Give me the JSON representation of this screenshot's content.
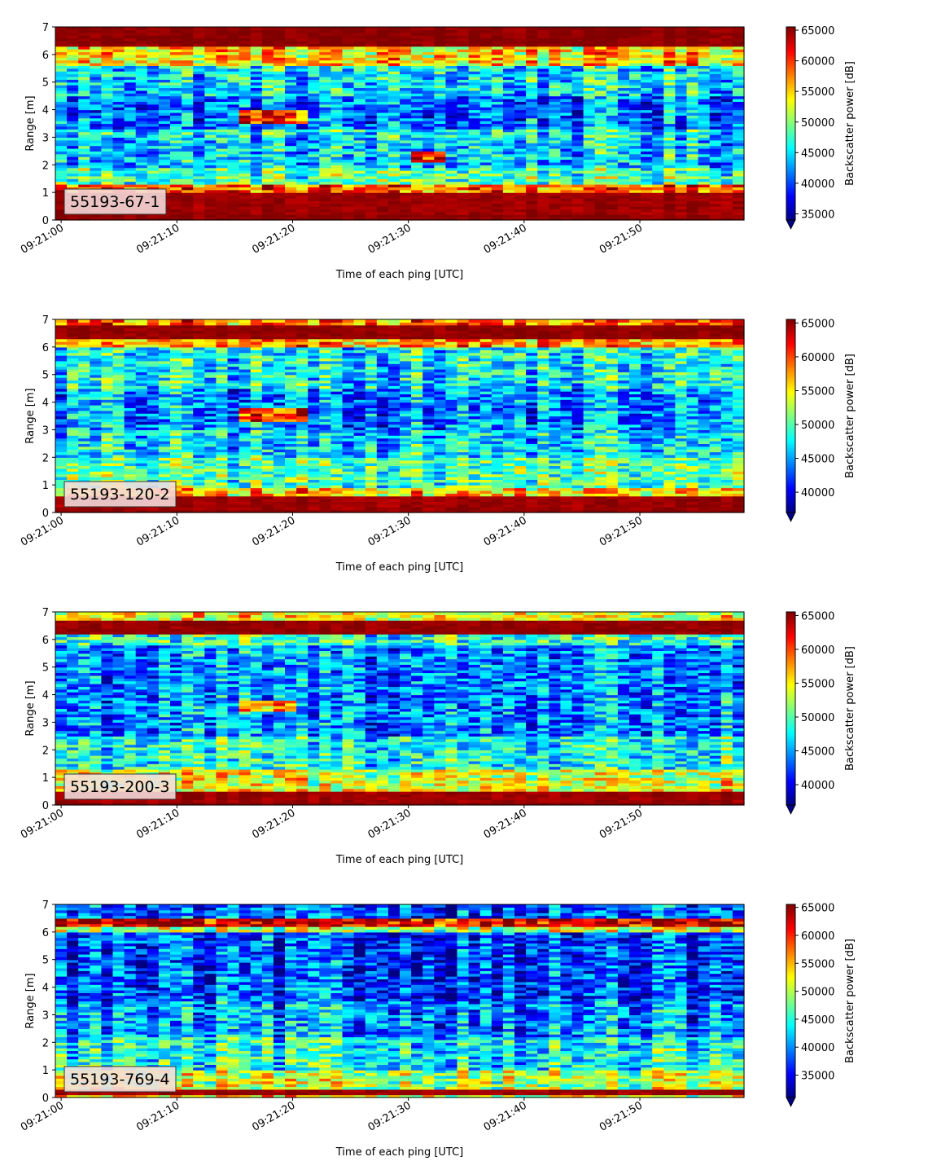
{
  "chart_data": [
    {
      "type": "heatmap",
      "label": "55193-67-1",
      "xlabel": "Time of each ping [UTC]",
      "ylabel": "Range [m]",
      "x_range": [
        "09:21:00",
        "09:21:59"
      ],
      "x_ticks": [
        "09:21:00",
        "09:21:10",
        "09:21:20",
        "09:21:30",
        "09:21:40",
        "09:21:50"
      ],
      "ylim": [
        0,
        7
      ],
      "y_ticks": [
        "0",
        "1",
        "2",
        "3",
        "4",
        "5",
        "6",
        "7"
      ],
      "colorbar": {
        "label": "Backscatter power [dB]",
        "range": [
          34000,
          65535
        ],
        "ticks": [
          "35000",
          "40000",
          "45000",
          "50000",
          "55000",
          "60000",
          "65000"
        ],
        "colormap": "jet",
        "extend": "min"
      },
      "bands": [
        {
          "y": [
            0.0,
            0.25
          ],
          "level": 0.99
        },
        {
          "y": [
            0.25,
            1.05
          ],
          "level": 0.97
        },
        {
          "y": [
            1.05,
            1.3
          ],
          "level": 0.78
        },
        {
          "y": [
            1.3,
            1.9
          ],
          "level": 0.46
        },
        {
          "y": [
            1.9,
            3.0
          ],
          "level": 0.33
        },
        {
          "y": [
            3.0,
            3.3
          ],
          "level": 0.38
        },
        {
          "y": [
            3.3,
            4.5
          ],
          "level": 0.24
        },
        {
          "y": [
            4.5,
            5.6
          ],
          "level": 0.35
        },
        {
          "y": [
            5.6,
            6.3
          ],
          "level": 0.66
        },
        {
          "y": [
            6.3,
            7.0
          ],
          "level": 0.99
        }
      ],
      "features": [
        {
          "t": [
            16.5,
            21.5
          ],
          "y": [
            3.5,
            4.0
          ],
          "level": 0.85
        },
        {
          "t": [
            31.5,
            33.5
          ],
          "y": [
            2.1,
            2.5
          ],
          "level": 0.9
        }
      ]
    },
    {
      "type": "heatmap",
      "label": "55193-120-2",
      "xlabel": "Time of each ping [UTC]",
      "ylabel": "Range [m]",
      "x_range": [
        "09:21:00",
        "09:21:59"
      ],
      "x_ticks": [
        "09:21:00",
        "09:21:10",
        "09:21:20",
        "09:21:30",
        "09:21:40",
        "09:21:50"
      ],
      "ylim": [
        0,
        7
      ],
      "y_ticks": [
        "0",
        "1",
        "2",
        "3",
        "4",
        "5",
        "6",
        "7"
      ],
      "colorbar": {
        "label": "Backscatter power [dB]",
        "range": [
          37000,
          65535
        ],
        "ticks": [
          "40000",
          "45000",
          "50000",
          "55000",
          "60000",
          "65000"
        ],
        "colormap": "jet",
        "extend": "min"
      },
      "bands": [
        {
          "y": [
            0.0,
            0.15
          ],
          "level": 0.99
        },
        {
          "y": [
            0.15,
            0.6
          ],
          "level": 0.97
        },
        {
          "y": [
            0.6,
            0.9
          ],
          "level": 0.66
        },
        {
          "y": [
            0.9,
            2.0
          ],
          "level": 0.45
        },
        {
          "y": [
            2.0,
            3.0
          ],
          "level": 0.34
        },
        {
          "y": [
            3.0,
            4.5
          ],
          "level": 0.26
        },
        {
          "y": [
            4.5,
            6.0
          ],
          "level": 0.37
        },
        {
          "y": [
            6.0,
            6.3
          ],
          "level": 0.72
        },
        {
          "y": [
            6.3,
            6.85
          ],
          "level": 0.98
        },
        {
          "y": [
            6.85,
            7.0
          ],
          "level": 0.75
        }
      ],
      "features": [
        {
          "t": [
            16.5,
            21.5
          ],
          "y": [
            3.35,
            3.8
          ],
          "level": 0.82
        }
      ]
    },
    {
      "type": "heatmap",
      "label": "55193-200-3",
      "xlabel": "Time of each ping [UTC]",
      "ylabel": "Range [m]",
      "x_range": [
        "09:21:00",
        "09:21:59"
      ],
      "x_ticks": [
        "09:21:00",
        "09:21:10",
        "09:21:20",
        "09:21:30",
        "09:21:40",
        "09:21:50"
      ],
      "ylim": [
        0,
        7
      ],
      "y_ticks": [
        "0",
        "1",
        "2",
        "3",
        "4",
        "5",
        "6",
        "7"
      ],
      "colorbar": {
        "label": "Backscatter power [dB]",
        "range": [
          37000,
          65535
        ],
        "ticks": [
          "40000",
          "45000",
          "50000",
          "55000",
          "60000",
          "65000"
        ],
        "colormap": "jet",
        "extend": "min"
      },
      "bands": [
        {
          "y": [
            0.0,
            0.1
          ],
          "level": 0.99
        },
        {
          "y": [
            0.1,
            0.45
          ],
          "level": 0.97
        },
        {
          "y": [
            0.45,
            1.3
          ],
          "level": 0.6
        },
        {
          "y": [
            1.3,
            2.5
          ],
          "level": 0.4
        },
        {
          "y": [
            2.5,
            5.8
          ],
          "level": 0.26
        },
        {
          "y": [
            5.8,
            6.2
          ],
          "level": 0.42
        },
        {
          "y": [
            6.2,
            6.65
          ],
          "level": 0.98
        },
        {
          "y": [
            6.65,
            7.0
          ],
          "level": 0.62
        }
      ],
      "features": [
        {
          "t": [
            16.5,
            21.0
          ],
          "y": [
            3.4,
            3.75
          ],
          "level": 0.7
        }
      ]
    },
    {
      "type": "heatmap",
      "label": "55193-769-4",
      "xlabel": "Time of each ping [UTC]",
      "ylabel": "Range [m]",
      "x_range": [
        "09:21:00",
        "09:21:59"
      ],
      "x_ticks": [
        "09:21:00",
        "09:21:10",
        "09:21:20",
        "09:21:30",
        "09:21:40",
        "09:21:50"
      ],
      "ylim": [
        0,
        7
      ],
      "y_ticks": [
        "0",
        "1",
        "2",
        "3",
        "4",
        "5",
        "6",
        "7"
      ],
      "colorbar": {
        "label": "Backscatter power [dB]",
        "range": [
          31000,
          65535
        ],
        "ticks": [
          "35000",
          "40000",
          "45000",
          "50000",
          "55000",
          "60000",
          "65000"
        ],
        "colormap": "jet",
        "extend": "min"
      },
      "bands": [
        {
          "y": [
            0.0,
            0.12
          ],
          "level": 0.6
        },
        {
          "y": [
            0.12,
            0.35
          ],
          "level": 0.97
        },
        {
          "y": [
            0.35,
            1.0
          ],
          "level": 0.55
        },
        {
          "y": [
            1.0,
            2.2
          ],
          "level": 0.38
        },
        {
          "y": [
            2.2,
            3.5
          ],
          "level": 0.26
        },
        {
          "y": [
            3.5,
            6.0
          ],
          "level": 0.18
        },
        {
          "y": [
            6.0,
            6.2
          ],
          "level": 0.55
        },
        {
          "y": [
            6.2,
            6.5
          ],
          "level": 0.92
        },
        {
          "y": [
            6.5,
            7.0
          ],
          "level": 0.2
        }
      ],
      "features": []
    }
  ]
}
